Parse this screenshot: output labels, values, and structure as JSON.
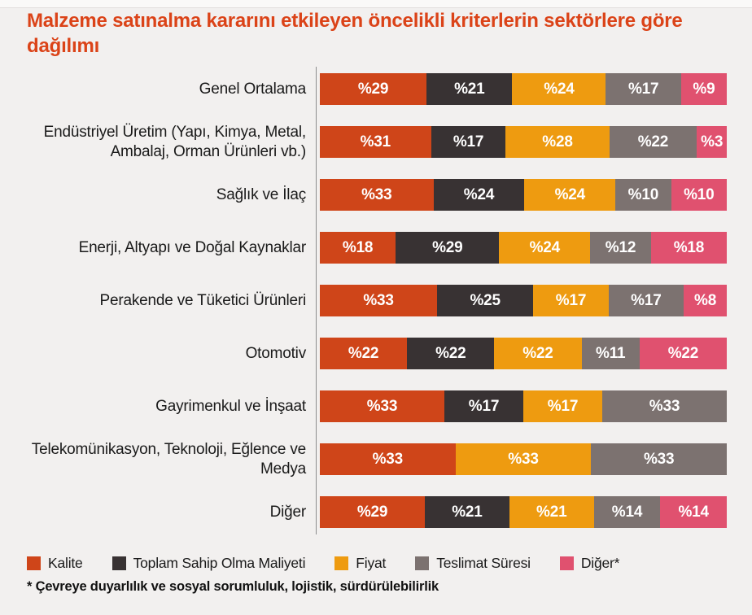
{
  "title": "Malzeme satınalma kararını etkileyen öncelikli kriterlerin sektörlere göre dağılımı",
  "footnote": "* Çevreye duyarlılık ve sosyal sorumluluk, lojistik, sürdürülebilirlik",
  "colors": {
    "background": "#F2F0EF",
    "title": "#DB4318",
    "axis_line": "#8C8C8C",
    "row_label_text": "#1A1A1A",
    "segment_label_text": "#FFFFFF"
  },
  "chart_data": {
    "type": "bar",
    "subtype": "horizontal-stacked",
    "unit": "percent",
    "percent_prefix": "%",
    "value_labels": "inside-center, white, format %N",
    "legend_position": "bottom",
    "xlim": [
      0,
      100
    ],
    "grid": false,
    "series": [
      {
        "name": "Kalite",
        "slug": "kalite",
        "color": "#CF4519"
      },
      {
        "name": "Toplam Sahip Olma Maliyeti",
        "slug": "toplam-sahip-olma-maliyeti",
        "color": "#383233"
      },
      {
        "name": "Fiyat",
        "slug": "fiyat",
        "color": "#EE9B10"
      },
      {
        "name": "Teslimat Süresi",
        "slug": "teslimat-suresi",
        "color": "#7C7270"
      },
      {
        "name": "Diğer*",
        "slug": "diger",
        "color": "#E0516F"
      }
    ],
    "categories": [
      "Genel Ortalama",
      "Endüstriyel Üretim (Yapı, Kimya, Metal, Ambalaj, Orman Ürünleri vb.)",
      "Sağlık ve İlaç",
      "Enerji, Altyapı ve Doğal Kaynaklar",
      "Perakende ve Tüketici Ürünleri",
      "Otomotiv",
      "Gayrimenkul ve İnşaat",
      "Telekomünikasyon, Teknoloji, Eğlence ve Medya",
      "Diğer"
    ],
    "rows": [
      {
        "category": "Genel Ortalama",
        "values": [
          29,
          21,
          24,
          17,
          9
        ]
      },
      {
        "category": "Endüstriyel Üretim (Yapı, Kimya, Metal, Ambalaj, Orman Ürünleri vb.)",
        "values": [
          31,
          17,
          28,
          22,
          3
        ]
      },
      {
        "category": "Sağlık ve İlaç",
        "values": [
          33,
          24,
          24,
          10,
          10
        ]
      },
      {
        "category": "Enerji, Altyapı ve Doğal Kaynaklar",
        "values": [
          18,
          29,
          24,
          12,
          18
        ]
      },
      {
        "category": "Perakende ve Tüketici Ürünleri",
        "values": [
          33,
          25,
          17,
          17,
          8
        ]
      },
      {
        "category": "Otomotiv",
        "values": [
          22,
          22,
          22,
          11,
          22
        ]
      },
      {
        "category": "Gayrimenkul ve İnşaat",
        "values": [
          33,
          17,
          17,
          33,
          null
        ]
      },
      {
        "category": "Telekomünikasyon, Teknoloji, Eğlence ve Medya",
        "values": [
          33,
          null,
          33,
          33,
          null
        ]
      },
      {
        "category": "Diğer",
        "values": [
          29,
          21,
          21,
          14,
          14
        ]
      }
    ]
  }
}
